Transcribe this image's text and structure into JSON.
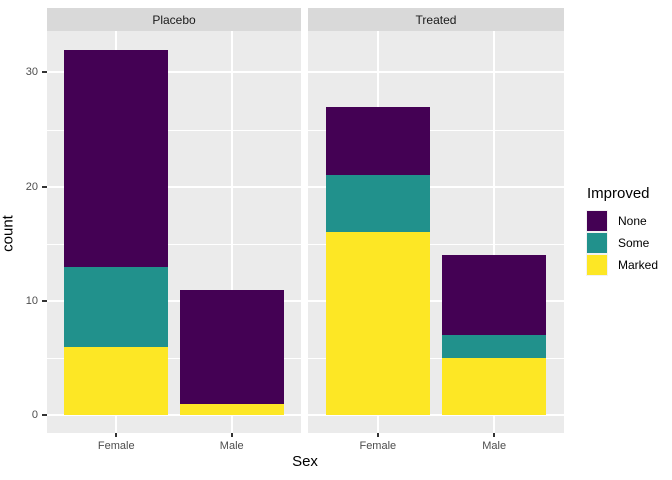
{
  "legend": {
    "title": "Improved"
  },
  "chart_data": {
    "type": "bar",
    "stacked": true,
    "title": "",
    "xlabel": "Sex",
    "ylabel": "count",
    "facet_labels": [
      "Placebo",
      "Treated"
    ],
    "categories": [
      "Female",
      "Male"
    ],
    "series": [
      {
        "name": "None",
        "color": "#440154",
        "values": {
          "Placebo": [
            19,
            10
          ],
          "Treated": [
            6,
            7
          ]
        }
      },
      {
        "name": "Some",
        "color": "#21918c",
        "values": {
          "Placebo": [
            7,
            0
          ],
          "Treated": [
            5,
            2
          ]
        }
      },
      {
        "name": "Marked",
        "color": "#fde725",
        "values": {
          "Placebo": [
            6,
            1
          ],
          "Treated": [
            16,
            5
          ]
        }
      }
    ],
    "stack_order_bottom_to_top": [
      "Marked",
      "Some",
      "None"
    ],
    "totals": {
      "Placebo": [
        32,
        11
      ],
      "Treated": [
        27,
        14
      ]
    },
    "ylim": [
      0,
      33.6
    ],
    "y_major_ticks": [
      0,
      10,
      20,
      30
    ],
    "y_minor_gridlines": [
      5,
      15,
      25
    ],
    "grid": true,
    "legend_position": "right",
    "panel_background": "#ebebeb",
    "strip_background": "#d9d9d9",
    "gridline_color": "#ffffff"
  }
}
